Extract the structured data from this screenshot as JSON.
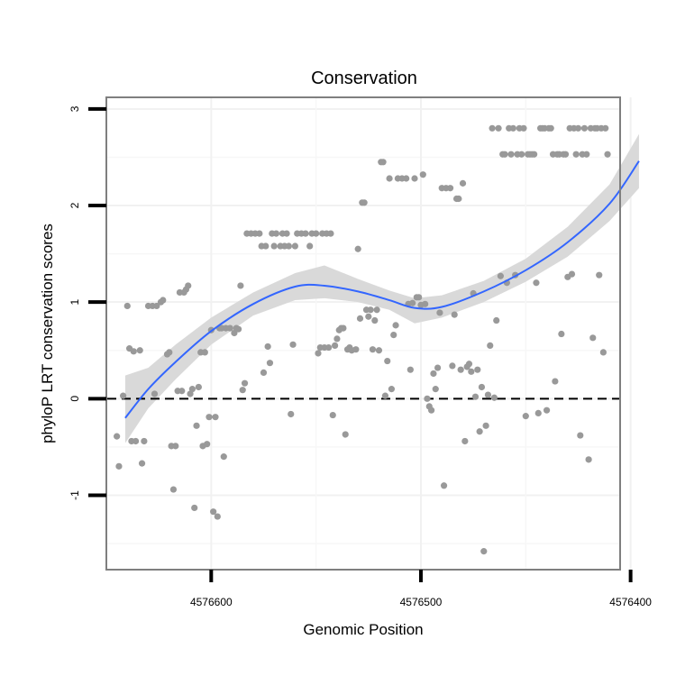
{
  "chart_data": {
    "type": "scatter",
    "title": "Conservation",
    "xlabel": "Genomic Position",
    "ylabel": "phyloP LRT conservation scores",
    "x_reversed": true,
    "xlim": [
      4576650,
      4576405
    ],
    "ylim": [
      -1.77,
      3.12
    ],
    "x_ticks": [
      4576600,
      4576500,
      4576400
    ],
    "x_tick_labels": [
      "4576600",
      "4576500",
      "4576400"
    ],
    "y_ticks": [
      -1,
      0,
      1,
      2,
      3
    ],
    "y_tick_labels": [
      "-1",
      "0",
      "1",
      "2",
      "3"
    ],
    "reference_line_y": 0,
    "grid": true,
    "point_color": "#999999",
    "smooth_color": "#3366ff",
    "band_color": "#d9d9d9",
    "smooth": [
      {
        "x": 4576641,
        "y": -0.2,
        "lo": -0.46,
        "hi": 0.24
      },
      {
        "x": 4576630,
        "y": 0.1,
        "lo": -0.1,
        "hi": 0.32
      },
      {
        "x": 4576617,
        "y": 0.38,
        "lo": 0.2,
        "hi": 0.56
      },
      {
        "x": 4576600,
        "y": 0.7,
        "lo": 0.56,
        "hi": 0.84
      },
      {
        "x": 4576580,
        "y": 0.98,
        "lo": 0.86,
        "hi": 1.1
      },
      {
        "x": 4576560,
        "y": 1.16,
        "lo": 1.02,
        "hi": 1.3
      },
      {
        "x": 4576546,
        "y": 1.17,
        "lo": 1.04,
        "hi": 1.38
      },
      {
        "x": 4576530,
        "y": 1.11,
        "lo": 1.0,
        "hi": 1.24
      },
      {
        "x": 4576515,
        "y": 1.02,
        "lo": 0.92,
        "hi": 1.12
      },
      {
        "x": 4576503,
        "y": 0.94,
        "lo": 0.78,
        "hi": 1.04
      },
      {
        "x": 4576490,
        "y": 0.95,
        "lo": 0.84,
        "hi": 1.07
      },
      {
        "x": 4576470,
        "y": 1.11,
        "lo": 1.0,
        "hi": 1.22
      },
      {
        "x": 4576450,
        "y": 1.33,
        "lo": 1.21,
        "hi": 1.45
      },
      {
        "x": 4576430,
        "y": 1.62,
        "lo": 1.47,
        "hi": 1.78
      },
      {
        "x": 4576410,
        "y": 2.02,
        "lo": 1.84,
        "hi": 2.22
      },
      {
        "x": 4576396,
        "y": 2.46,
        "lo": 2.18,
        "hi": 2.74
      }
    ],
    "points": [
      {
        "x": 4576645,
        "y": -0.39
      },
      {
        "x": 4576644,
        "y": -0.7
      },
      {
        "x": 4576642,
        "y": 0.03
      },
      {
        "x": 4576640,
        "y": 0.96
      },
      {
        "x": 4576639,
        "y": 0.52
      },
      {
        "x": 4576638,
        "y": -0.44
      },
      {
        "x": 4576637,
        "y": 0.49
      },
      {
        "x": 4576636,
        "y": -0.44
      },
      {
        "x": 4576634,
        "y": 0.5
      },
      {
        "x": 4576633,
        "y": -0.67
      },
      {
        "x": 4576632,
        "y": -0.44
      },
      {
        "x": 4576630,
        "y": 0.96
      },
      {
        "x": 4576628,
        "y": 0.96
      },
      {
        "x": 4576627,
        "y": 0.05
      },
      {
        "x": 4576626,
        "y": 0.96
      },
      {
        "x": 4576624,
        "y": 1.0
      },
      {
        "x": 4576623,
        "y": 1.02
      },
      {
        "x": 4576621,
        "y": 0.46
      },
      {
        "x": 4576620,
        "y": 0.48
      },
      {
        "x": 4576619,
        "y": -0.49
      },
      {
        "x": 4576618,
        "y": -0.94
      },
      {
        "x": 4576617,
        "y": -0.49
      },
      {
        "x": 4576616,
        "y": 0.08
      },
      {
        "x": 4576615,
        "y": 1.1
      },
      {
        "x": 4576614,
        "y": 0.08
      },
      {
        "x": 4576613,
        "y": 1.1
      },
      {
        "x": 4576612,
        "y": 1.13
      },
      {
        "x": 4576611,
        "y": 1.17
      },
      {
        "x": 4576610,
        "y": 0.05
      },
      {
        "x": 4576609,
        "y": 0.1
      },
      {
        "x": 4576608,
        "y": -1.13
      },
      {
        "x": 4576607,
        "y": -0.28
      },
      {
        "x": 4576606,
        "y": 0.12
      },
      {
        "x": 4576605,
        "y": 0.48
      },
      {
        "x": 4576604,
        "y": -0.49
      },
      {
        "x": 4576603,
        "y": 0.48
      },
      {
        "x": 4576602,
        "y": -0.47
      },
      {
        "x": 4576601,
        "y": -0.19
      },
      {
        "x": 4576600,
        "y": 0.71
      },
      {
        "x": 4576599,
        "y": -1.17
      },
      {
        "x": 4576598,
        "y": -0.19
      },
      {
        "x": 4576597,
        "y": -1.22
      },
      {
        "x": 4576596,
        "y": 0.73
      },
      {
        "x": 4576595,
        "y": 0.73
      },
      {
        "x": 4576594,
        "y": -0.6
      },
      {
        "x": 4576593,
        "y": 0.73
      },
      {
        "x": 4576591,
        "y": 0.73
      },
      {
        "x": 4576589,
        "y": 0.68
      },
      {
        "x": 4576588,
        "y": 0.73
      },
      {
        "x": 4576587,
        "y": 0.72
      },
      {
        "x": 4576586,
        "y": 1.17
      },
      {
        "x": 4576585,
        "y": 0.09
      },
      {
        "x": 4576584,
        "y": 0.16
      },
      {
        "x": 4576583,
        "y": 1.71
      },
      {
        "x": 4576581,
        "y": 1.71
      },
      {
        "x": 4576579,
        "y": 1.71
      },
      {
        "x": 4576577,
        "y": 1.71
      },
      {
        "x": 4576576,
        "y": 1.58
      },
      {
        "x": 4576575,
        "y": 0.27
      },
      {
        "x": 4576574,
        "y": 1.58
      },
      {
        "x": 4576573,
        "y": 0.54
      },
      {
        "x": 4576572,
        "y": 0.37
      },
      {
        "x": 4576571,
        "y": 1.71
      },
      {
        "x": 4576570,
        "y": 1.58
      },
      {
        "x": 4576569,
        "y": 1.71
      },
      {
        "x": 4576567,
        "y": 1.58
      },
      {
        "x": 4576566,
        "y": 1.71
      },
      {
        "x": 4576565,
        "y": 1.58
      },
      {
        "x": 4576564,
        "y": 1.71
      },
      {
        "x": 4576563,
        "y": 1.58
      },
      {
        "x": 4576562,
        "y": -0.16
      },
      {
        "x": 4576561,
        "y": 0.56
      },
      {
        "x": 4576560,
        "y": 1.58
      },
      {
        "x": 4576559,
        "y": 1.71
      },
      {
        "x": 4576557,
        "y": 1.71
      },
      {
        "x": 4576555,
        "y": 1.71
      },
      {
        "x": 4576553,
        "y": 1.58
      },
      {
        "x": 4576552,
        "y": 1.71
      },
      {
        "x": 4576550,
        "y": 1.71
      },
      {
        "x": 4576549,
        "y": 0.47
      },
      {
        "x": 4576548,
        "y": 0.53
      },
      {
        "x": 4576547,
        "y": 1.71
      },
      {
        "x": 4576546,
        "y": 0.53
      },
      {
        "x": 4576545,
        "y": 1.71
      },
      {
        "x": 4576544,
        "y": 0.53
      },
      {
        "x": 4576543,
        "y": 1.71
      },
      {
        "x": 4576542,
        "y": -0.17
      },
      {
        "x": 4576541,
        "y": 0.55
      },
      {
        "x": 4576540,
        "y": 0.62
      },
      {
        "x": 4576539,
        "y": 0.71
      },
      {
        "x": 4576538,
        "y": 0.73
      },
      {
        "x": 4576537,
        "y": 0.73
      },
      {
        "x": 4576536,
        "y": -0.37
      },
      {
        "x": 4576535,
        "y": 0.51
      },
      {
        "x": 4576534,
        "y": 0.53
      },
      {
        "x": 4576533,
        "y": 0.5
      },
      {
        "x": 4576531,
        "y": 0.51
      },
      {
        "x": 4576530,
        "y": 1.55
      },
      {
        "x": 4576529,
        "y": 0.83
      },
      {
        "x": 4576528,
        "y": 2.03
      },
      {
        "x": 4576527,
        "y": 2.03
      },
      {
        "x": 4576526,
        "y": 0.92
      },
      {
        "x": 4576525,
        "y": 0.85
      },
      {
        "x": 4576524,
        "y": 0.92
      },
      {
        "x": 4576523,
        "y": 0.51
      },
      {
        "x": 4576522,
        "y": 0.81
      },
      {
        "x": 4576521,
        "y": 0.92
      },
      {
        "x": 4576520,
        "y": 0.5
      },
      {
        "x": 4576519,
        "y": 2.45
      },
      {
        "x": 4576518,
        "y": 2.45
      },
      {
        "x": 4576517,
        "y": 0.03
      },
      {
        "x": 4576516,
        "y": 0.39
      },
      {
        "x": 4576515,
        "y": 2.28
      },
      {
        "x": 4576514,
        "y": 0.1
      },
      {
        "x": 4576513,
        "y": 0.66
      },
      {
        "x": 4576512,
        "y": 0.76
      },
      {
        "x": 4576511,
        "y": 2.28
      },
      {
        "x": 4576509,
        "y": 2.28
      },
      {
        "x": 4576507,
        "y": 2.28
      },
      {
        "x": 4576506,
        "y": 0.98
      },
      {
        "x": 4576505,
        "y": 0.3
      },
      {
        "x": 4576504,
        "y": 0.99
      },
      {
        "x": 4576503,
        "y": 2.28
      },
      {
        "x": 4576502,
        "y": 1.05
      },
      {
        "x": 4576501,
        "y": 1.05
      },
      {
        "x": 4576500,
        "y": 0.97
      },
      {
        "x": 4576499,
        "y": 2.32
      },
      {
        "x": 4576498,
        "y": 0.98
      },
      {
        "x": 4576497,
        "y": 0.0
      },
      {
        "x": 4576496,
        "y": -0.08
      },
      {
        "x": 4576495,
        "y": -0.12
      },
      {
        "x": 4576494,
        "y": 0.26
      },
      {
        "x": 4576493,
        "y": 0.1
      },
      {
        "x": 4576492,
        "y": 0.32
      },
      {
        "x": 4576491,
        "y": 0.89
      },
      {
        "x": 4576490,
        "y": 2.18
      },
      {
        "x": 4576489,
        "y": -0.9
      },
      {
        "x": 4576488,
        "y": 2.18
      },
      {
        "x": 4576486,
        "y": 2.18
      },
      {
        "x": 4576485,
        "y": 0.34
      },
      {
        "x": 4576484,
        "y": 0.87
      },
      {
        "x": 4576483,
        "y": 2.07
      },
      {
        "x": 4576482,
        "y": 2.07
      },
      {
        "x": 4576481,
        "y": 0.3
      },
      {
        "x": 4576480,
        "y": 2.23
      },
      {
        "x": 4576479,
        "y": -0.44
      },
      {
        "x": 4576478,
        "y": 0.33
      },
      {
        "x": 4576477,
        "y": 0.36
      },
      {
        "x": 4576476,
        "y": 0.28
      },
      {
        "x": 4576475,
        "y": 1.09
      },
      {
        "x": 4576474,
        "y": 0.02
      },
      {
        "x": 4576473,
        "y": 0.3
      },
      {
        "x": 4576472,
        "y": -0.34
      },
      {
        "x": 4576471,
        "y": 0.12
      },
      {
        "x": 4576470,
        "y": -1.58
      },
      {
        "x": 4576469,
        "y": -0.28
      },
      {
        "x": 4576468,
        "y": 0.04
      },
      {
        "x": 4576467,
        "y": 0.55
      },
      {
        "x": 4576466,
        "y": 2.8
      },
      {
        "x": 4576465,
        "y": 0.01
      },
      {
        "x": 4576464,
        "y": 0.81
      },
      {
        "x": 4576463,
        "y": 2.8
      },
      {
        "x": 4576462,
        "y": 1.27
      },
      {
        "x": 4576461,
        "y": 2.53
      },
      {
        "x": 4576460,
        "y": 2.53
      },
      {
        "x": 4576459,
        "y": 1.2
      },
      {
        "x": 4576458,
        "y": 2.8
      },
      {
        "x": 4576457,
        "y": 2.53
      },
      {
        "x": 4576456,
        "y": 2.8
      },
      {
        "x": 4576455,
        "y": 1.28
      },
      {
        "x": 4576454,
        "y": 2.53
      },
      {
        "x": 4576453,
        "y": 2.8
      },
      {
        "x": 4576452,
        "y": 2.53
      },
      {
        "x": 4576451,
        "y": 2.8
      },
      {
        "x": 4576450,
        "y": -0.18
      },
      {
        "x": 4576449,
        "y": 2.53
      },
      {
        "x": 4576448,
        "y": 2.53
      },
      {
        "x": 4576447,
        "y": 2.53
      },
      {
        "x": 4576446,
        "y": 2.53
      },
      {
        "x": 4576445,
        "y": 1.2
      },
      {
        "x": 4576444,
        "y": -0.15
      },
      {
        "x": 4576443,
        "y": 2.8
      },
      {
        "x": 4576442,
        "y": 2.8
      },
      {
        "x": 4576441,
        "y": 2.8
      },
      {
        "x": 4576440,
        "y": -0.12
      },
      {
        "x": 4576439,
        "y": 2.8
      },
      {
        "x": 4576438,
        "y": 2.8
      },
      {
        "x": 4576437,
        "y": 2.53
      },
      {
        "x": 4576436,
        "y": 0.18
      },
      {
        "x": 4576435,
        "y": 2.53
      },
      {
        "x": 4576434,
        "y": 2.53
      },
      {
        "x": 4576433,
        "y": 0.67
      },
      {
        "x": 4576432,
        "y": 2.53
      },
      {
        "x": 4576431,
        "y": 2.53
      },
      {
        "x": 4576430,
        "y": 1.26
      },
      {
        "x": 4576429,
        "y": 2.8
      },
      {
        "x": 4576428,
        "y": 1.29
      },
      {
        "x": 4576427,
        "y": 2.8
      },
      {
        "x": 4576426,
        "y": 2.53
      },
      {
        "x": 4576425,
        "y": 2.8
      },
      {
        "x": 4576424,
        "y": -0.38
      },
      {
        "x": 4576423,
        "y": 2.53
      },
      {
        "x": 4576422,
        "y": 2.8
      },
      {
        "x": 4576421,
        "y": 2.53
      },
      {
        "x": 4576420,
        "y": -0.63
      },
      {
        "x": 4576419,
        "y": 2.8
      },
      {
        "x": 4576418,
        "y": 0.63
      },
      {
        "x": 4576417,
        "y": 2.8
      },
      {
        "x": 4576416,
        "y": 2.8
      },
      {
        "x": 4576415,
        "y": 1.28
      },
      {
        "x": 4576414,
        "y": 2.8
      },
      {
        "x": 4576413,
        "y": 0.48
      },
      {
        "x": 4576412,
        "y": 2.8
      },
      {
        "x": 4576411,
        "y": 2.53
      }
    ]
  }
}
